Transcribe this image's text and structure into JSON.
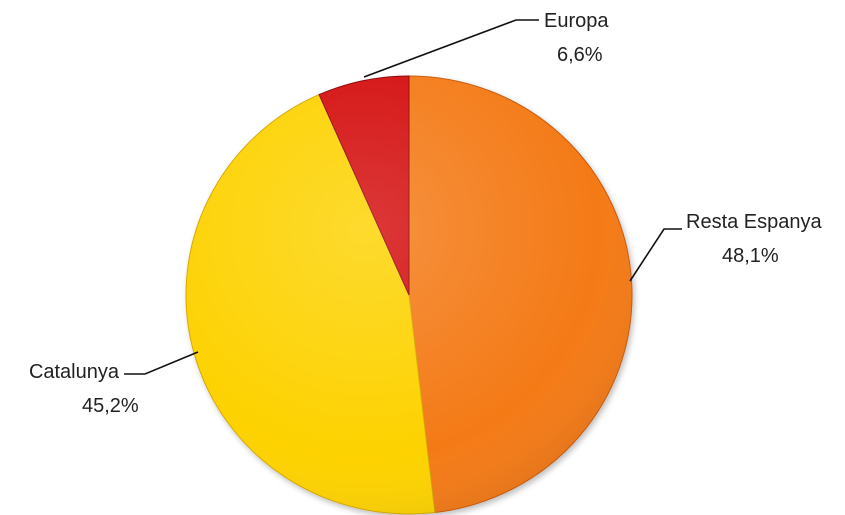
{
  "chart_data": {
    "type": "pie",
    "title": "",
    "slices": [
      {
        "name": "Resta Espanya",
        "value": 48.1,
        "value_label": "48,1%",
        "color": "#F47A14",
        "edge_color": "#C95A08"
      },
      {
        "name": "Catalunya",
        "value": 45.2,
        "value_label": "45,2%",
        "color": "#FDD200",
        "edge_color": "#D6A800"
      },
      {
        "name": "Europa",
        "value": 6.6,
        "value_label": "6,6%",
        "color": "#D40A0A",
        "edge_color": "#8E0505"
      }
    ],
    "start": "12 o'clock",
    "direction": "clockwise",
    "legend": "none",
    "data_labels": "outside with leader lines"
  }
}
